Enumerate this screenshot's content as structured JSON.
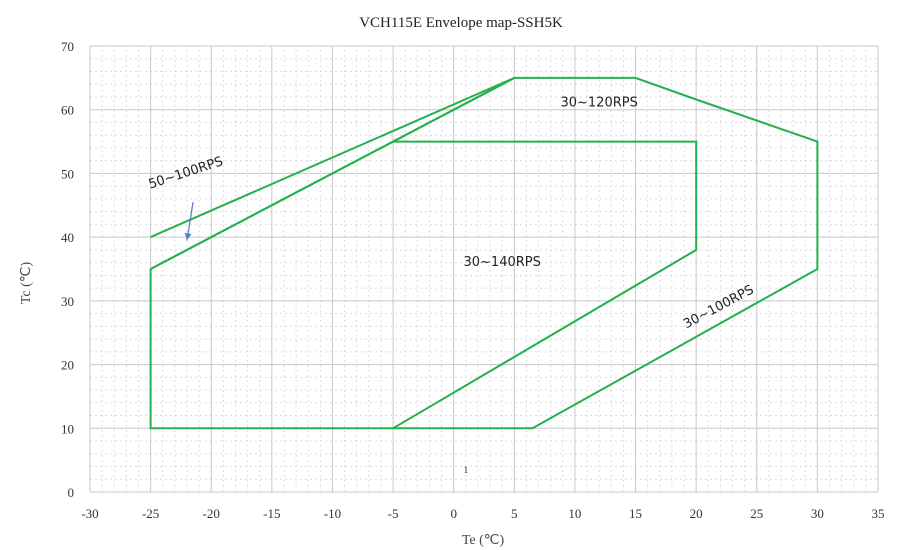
{
  "chart_data": {
    "type": "line",
    "title": "VCH115E Envelope map-SSH5K",
    "xlabel": "Te (℃)",
    "ylabel": "Tc (℃)",
    "xlim": [
      -30,
      35
    ],
    "ylim": [
      0,
      70
    ],
    "x_ticks": [
      -30,
      -25,
      -20,
      -15,
      -10,
      -5,
      0,
      5,
      10,
      15,
      20,
      25,
      30,
      35
    ],
    "y_ticks": [
      0,
      10,
      20,
      30,
      40,
      50,
      60,
      70
    ],
    "grid": true,
    "line_color": "#22b14c",
    "series": [
      {
        "label": "50~100RPS",
        "values": [
          [
            -25,
            40
          ],
          [
            5,
            65
          ],
          [
            -25,
            35
          ]
        ]
      },
      {
        "label": "30~140RPS",
        "values": [
          [
            -25,
            35
          ],
          [
            -5,
            55
          ],
          [
            20,
            55
          ],
          [
            20,
            38
          ],
          [
            -5,
            10
          ],
          [
            -25,
            10
          ],
          [
            -25,
            35
          ]
        ]
      },
      {
        "label": "30~120RPS",
        "values": [
          [
            -5,
            55
          ],
          [
            5,
            65
          ],
          [
            15,
            65
          ],
          [
            20,
            61.6
          ]
        ]
      },
      {
        "label": "30~100RPS",
        "values": [
          [
            20,
            61.6
          ],
          [
            30,
            55
          ],
          [
            30,
            35
          ],
          [
            6.5,
            10
          ],
          [
            -5,
            10
          ]
        ]
      }
    ],
    "annotations": [
      {
        "text": "50~100RPS",
        "x": -22,
        "y": 49.5,
        "angle": -18
      },
      {
        "text": "30~120RPS",
        "x": 12,
        "y": 60.5,
        "angle": 0
      },
      {
        "text": "30~140RPS",
        "x": 4,
        "y": 35.5,
        "angle": 0
      },
      {
        "text": "30~100RPS",
        "x": 22,
        "y": 28.5,
        "angle": -28
      },
      {
        "text": "1",
        "x": 1,
        "y": 3,
        "angle": 0
      }
    ],
    "arrow": {
      "from": [
        -21.5,
        45.5
      ],
      "to": [
        -22,
        39.5
      ],
      "color": "#5b7fbf"
    }
  }
}
